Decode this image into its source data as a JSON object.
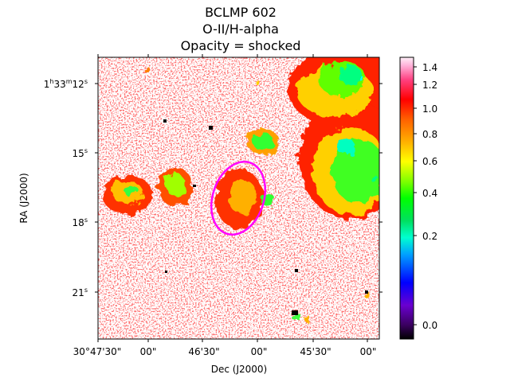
{
  "title": {
    "line1": "BCLMP 602",
    "line2": "O-II/H-alpha",
    "line3": "Opacity = shocked"
  },
  "image_panel": {
    "xlabel": "Dec (J2000)",
    "ylabel": "RA (J2000)",
    "x_ticks": [
      "30°47'30\"",
      "00\"",
      "46'30\"",
      "00\"",
      "45'30\"",
      "00\""
    ],
    "y_ticks": [
      {
        "main": "1",
        "sup1": "h",
        "mid": "33",
        "sup2": "m",
        "rest": "12",
        "sup3": "s"
      },
      {
        "main": "15",
        "sup3": "s"
      },
      {
        "main": "18",
        "sup3": "s"
      },
      {
        "main": "21",
        "sup3": "s"
      }
    ]
  },
  "colorbar": {
    "colormap": "gist_ncar-like (black-purple-blue-cyan-green-yellow-orange-red-pink-white)",
    "ticks": [
      "1.4",
      "1.2",
      "1.0",
      "0.8",
      "0.6",
      "0.4",
      "0.2",
      "0.0"
    ]
  },
  "annotation": {
    "shape": "ellipse",
    "color": "#ff00ff"
  }
}
